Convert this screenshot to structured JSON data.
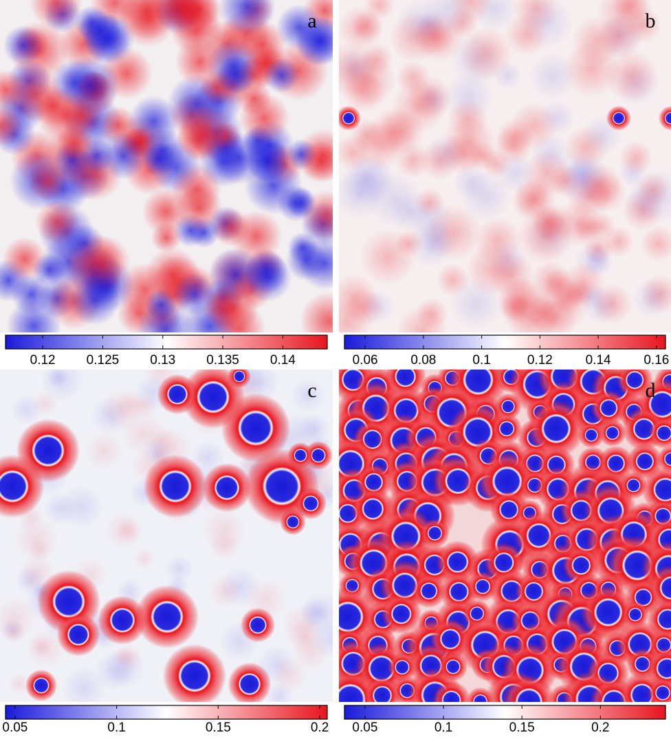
{
  "chart_data": [
    {
      "type": "heatmap",
      "label": "a",
      "clim": [
        0.1169,
        0.1437
      ],
      "ticks": [
        0.12,
        0.125,
        0.13,
        0.135,
        0.14
      ],
      "colormap": [
        "#1a1adb",
        "#ffffff",
        "#e8141e"
      ]
    },
    {
      "type": "heatmap",
      "label": "b",
      "clim": [
        0.0529,
        0.1631
      ],
      "ticks": [
        0.06,
        0.08,
        0.1,
        0.12,
        0.14,
        0.16
      ],
      "colormap": [
        "#1a1adb",
        "#ffffff",
        "#e8141e"
      ]
    },
    {
      "type": "heatmap",
      "label": "c",
      "clim": [
        0.0453,
        0.2037
      ],
      "ticks": [
        0.05,
        0.1,
        0.15,
        0.2
      ],
      "colormap": [
        "#1a1adb",
        "#ffffff",
        "#e8141e"
      ]
    },
    {
      "type": "heatmap",
      "label": "d",
      "clim": [
        0.0369,
        0.2415
      ],
      "ticks": [
        0.05,
        0.1,
        0.15,
        0.2
      ],
      "colormap": [
        "#1a1adb",
        "#ffffff",
        "#e8141e"
      ]
    }
  ]
}
